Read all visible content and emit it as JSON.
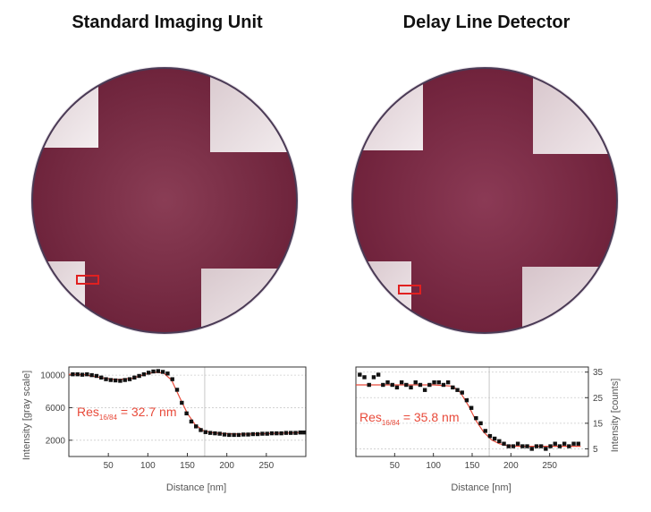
{
  "panels": [
    {
      "title": "Standard Imaging Unit",
      "colors": {
        "disc": "#7a2f45",
        "corner": "#ece4e6",
        "rim": "#4a3a55",
        "marker": "#e02020",
        "fit": "#e84a3a",
        "points": "#111111"
      }
    },
    {
      "title": "Delay Line Detector",
      "colors": {
        "disc": "#7d2c45",
        "corner": "#ece4e6",
        "rim": "#4a3a55",
        "marker": "#e02020",
        "fit": "#e84a3a",
        "points": "#111111"
      }
    }
  ],
  "chart_data": [
    {
      "type": "scatter",
      "title": "",
      "xlabel": "Distance [nm]",
      "ylabel": "Intensity [gray scale]",
      "annotation": {
        "main": "Res",
        "sub": "16/84",
        "rest": " = 32.7 nm"
      },
      "xlim": [
        0,
        300
      ],
      "ylim": [
        0,
        11000
      ],
      "xticks": [
        50,
        100,
        150,
        200,
        250
      ],
      "yticks": [
        2000,
        6000,
        10000
      ],
      "grid": true,
      "marker_x": 172,
      "series": [
        {
          "x": [
            5,
            11,
            17,
            23,
            29,
            35,
            41,
            47,
            53,
            59,
            65,
            71,
            77,
            83,
            89,
            95,
            101,
            107,
            113,
            119,
            125,
            131,
            137,
            143,
            149,
            155,
            161,
            167,
            173,
            179,
            185,
            191,
            197,
            203,
            209,
            215,
            221,
            227,
            233,
            239,
            245,
            251,
            257,
            263,
            269,
            275,
            281,
            287,
            293,
            298
          ],
          "y": [
            10100,
            10100,
            10050,
            10100,
            10000,
            9900,
            9700,
            9500,
            9400,
            9350,
            9300,
            9400,
            9500,
            9700,
            9900,
            10100,
            10300,
            10450,
            10500,
            10400,
            10200,
            9500,
            8200,
            6600,
            5300,
            4300,
            3700,
            3250,
            3000,
            2900,
            2850,
            2800,
            2700,
            2650,
            2650,
            2650,
            2700,
            2700,
            2750,
            2750,
            2800,
            2800,
            2850,
            2850,
            2850,
            2900,
            2900,
            2900,
            2950,
            2950
          ]
        }
      ],
      "fit": {
        "x": [
          0,
          20,
          40,
          60,
          80,
          100,
          110,
          120,
          130,
          140,
          150,
          160,
          170,
          180,
          190,
          200,
          220,
          250,
          298
        ],
        "y": [
          10100,
          10050,
          9700,
          9450,
          9600,
          10200,
          10350,
          10250,
          9400,
          7300,
          5300,
          3900,
          3200,
          2950,
          2850,
          2800,
          2750,
          2800,
          2950
        ]
      }
    },
    {
      "type": "scatter",
      "title": "",
      "xlabel": "Distance [nm]",
      "ylabel": "Intensity [counts]",
      "annotation": {
        "main": "Res",
        "sub": "16/84",
        "rest": " = 35.8 nm"
      },
      "xlim": [
        0,
        300
      ],
      "ylim": [
        2,
        37
      ],
      "xticks": [
        50,
        100,
        150,
        200,
        250
      ],
      "yticks": [
        5,
        15,
        25,
        35
      ],
      "grid": true,
      "marker_x": 172,
      "series": [
        {
          "x": [
            5,
            11,
            17,
            23,
            29,
            35,
            41,
            47,
            53,
            59,
            65,
            71,
            77,
            83,
            89,
            95,
            101,
            107,
            113,
            119,
            125,
            131,
            137,
            143,
            149,
            155,
            161,
            167,
            173,
            179,
            185,
            191,
            197,
            203,
            209,
            215,
            221,
            227,
            233,
            239,
            245,
            251,
            257,
            263,
            269,
            275,
            281,
            287
          ],
          "y": [
            34,
            33,
            30,
            33,
            34,
            30,
            31,
            30,
            29,
            31,
            30,
            29,
            31,
            30,
            28,
            30,
            31,
            31,
            30,
            31,
            29,
            28,
            27,
            24,
            21,
            17,
            15,
            12,
            10,
            9,
            8,
            7,
            6,
            6,
            7,
            6,
            6,
            5,
            6,
            6,
            5,
            6,
            7,
            6,
            7,
            6,
            7,
            7
          ]
        }
      ],
      "fit": {
        "x": [
          0,
          50,
          100,
          125,
          135,
          145,
          155,
          165,
          175,
          185,
          195,
          210,
          250,
          290
        ],
        "y": [
          30,
          30,
          30,
          29.5,
          27,
          22,
          16,
          11.5,
          8.5,
          7,
          6.3,
          6,
          6,
          6
        ]
      }
    }
  ]
}
